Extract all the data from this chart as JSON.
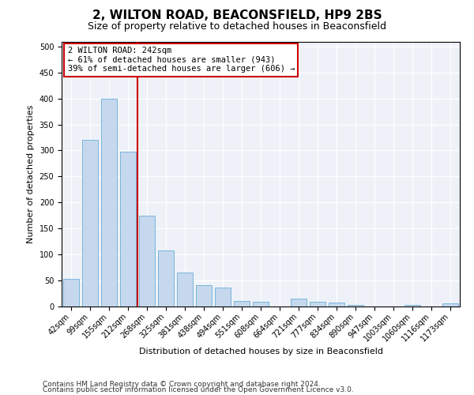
{
  "title1": "2, WILTON ROAD, BEACONSFIELD, HP9 2BS",
  "title2": "Size of property relative to detached houses in Beaconsfield",
  "xlabel": "Distribution of detached houses by size in Beaconsfield",
  "ylabel": "Number of detached properties",
  "categories": [
    "42sqm",
    "99sqm",
    "155sqm",
    "212sqm",
    "268sqm",
    "325sqm",
    "381sqm",
    "438sqm",
    "494sqm",
    "551sqm",
    "608sqm",
    "664sqm",
    "721sqm",
    "777sqm",
    "834sqm",
    "890sqm",
    "947sqm",
    "1003sqm",
    "1060sqm",
    "1116sqm",
    "1173sqm"
  ],
  "values": [
    52,
    320,
    400,
    297,
    175,
    107,
    65,
    40,
    36,
    10,
    9,
    0,
    15,
    9,
    7,
    3,
    0,
    0,
    2,
    0,
    6
  ],
  "bar_color": "#c5d8ed",
  "bar_edge_color": "#6aaed6",
  "vline_x": 3.5,
  "annotation_line1": "2 WILTON ROAD: 242sqm",
  "annotation_line2": "← 61% of detached houses are smaller (943)",
  "annotation_line3": "39% of semi-detached houses are larger (606) →",
  "annotation_box_color": "#ffffff",
  "annotation_box_edge_color": "#cc0000",
  "vline_color": "#cc0000",
  "ylim": [
    0,
    510
  ],
  "yticks": [
    0,
    50,
    100,
    150,
    200,
    250,
    300,
    350,
    400,
    450,
    500
  ],
  "footer1": "Contains HM Land Registry data © Crown copyright and database right 2024.",
  "footer2": "Contains public sector information licensed under the Open Government Licence v3.0.",
  "bg_color": "#eef2f8",
  "fig_bg_color": "#ffffff",
  "title1_fontsize": 11,
  "title2_fontsize": 9,
  "tick_fontsize": 7,
  "label_fontsize": 8,
  "annotation_fontsize": 7.5,
  "footer_fontsize": 6.5
}
